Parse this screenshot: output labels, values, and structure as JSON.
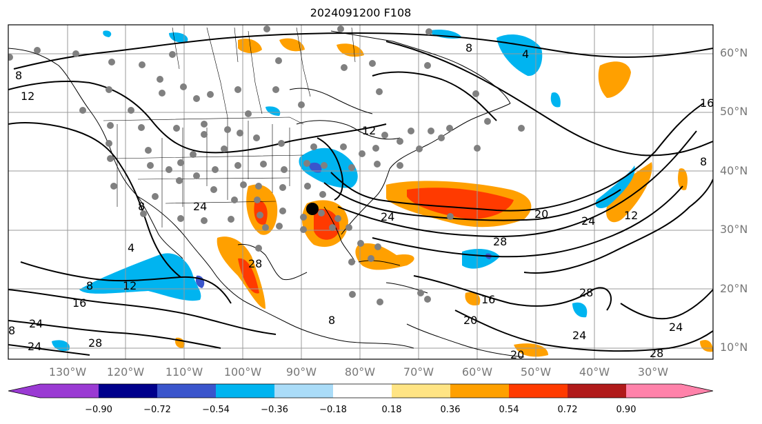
{
  "title": "2024091200 F108",
  "lat_labels": [
    "60°N",
    "50°N",
    "40°N",
    "30°N",
    "20°N",
    "10°N"
  ],
  "lon_labels": [
    "130°W",
    "120°W",
    "110°W",
    "100°W",
    "90°W",
    "80°W",
    "70°W",
    "60°W",
    "50°W",
    "40°W",
    "30°W"
  ],
  "colorbar": {
    "colors": [
      "#9a3ad3",
      "#00008b",
      "#3a55cc",
      "#00b4f0",
      "#aadcf8",
      "#ffffff",
      "#ffe484",
      "#ffa000",
      "#ff3a00",
      "#b01a1a",
      "#ff82aa"
    ],
    "tick_labels": [
      "−0.90",
      "−0.72",
      "−0.54",
      "−0.36",
      "−0.18",
      "0.18",
      "0.36",
      "0.54",
      "0.72",
      "0.90"
    ]
  },
  "contour_labels": [
    "4",
    "8",
    "12",
    "16",
    "20",
    "24",
    "28"
  ],
  "colors": {
    "station_dot": "#808080",
    "marker": "#000000",
    "contour": "#000000",
    "grid": "#999999"
  }
}
